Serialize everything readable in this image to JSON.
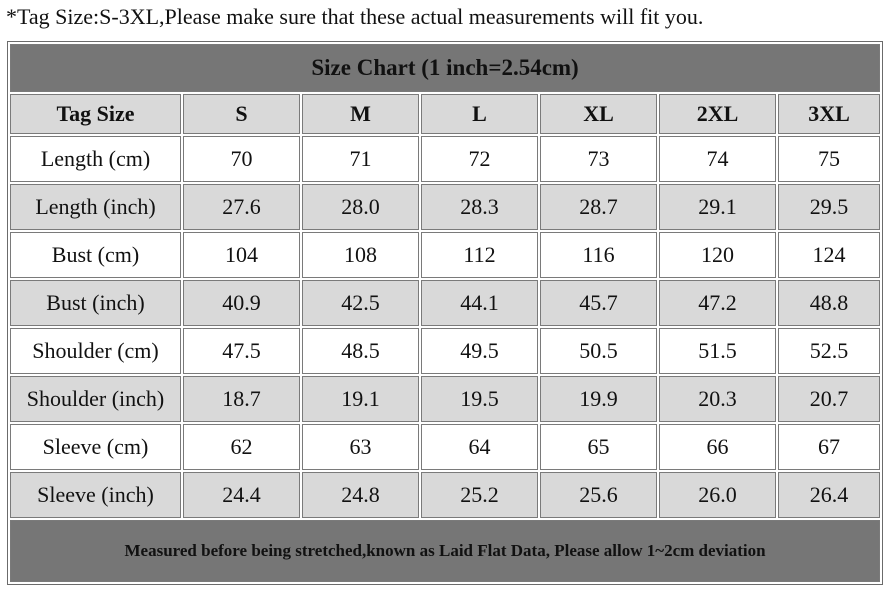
{
  "note": "*Tag Size:S-3XL,Please make sure that these actual measurements will fit you.",
  "table": {
    "title": "Size Chart (1 inch=2.54cm)",
    "header": [
      "Tag Size",
      "S",
      "M",
      "L",
      "XL",
      "2XL",
      "3XL"
    ],
    "rows": [
      [
        "Length (cm)",
        "70",
        "71",
        "72",
        "73",
        "74",
        "75"
      ],
      [
        "Length (inch)",
        "27.6",
        "28.0",
        "28.3",
        "28.7",
        "29.1",
        "29.5"
      ],
      [
        "Bust (cm)",
        "104",
        "108",
        "112",
        "116",
        "120",
        "124"
      ],
      [
        "Bust (inch)",
        "40.9",
        "42.5",
        "44.1",
        "45.7",
        "47.2",
        "48.8"
      ],
      [
        "Shoulder (cm)",
        "47.5",
        "48.5",
        "49.5",
        "50.5",
        "51.5",
        "52.5"
      ],
      [
        "Shoulder (inch)",
        "18.7",
        "19.1",
        "19.5",
        "19.9",
        "20.3",
        "20.7"
      ],
      [
        "Sleeve (cm)",
        "62",
        "63",
        "64",
        "65",
        "66",
        "67"
      ],
      [
        "Sleeve (inch)",
        "24.4",
        "24.8",
        "25.2",
        "25.6",
        "26.0",
        "26.4"
      ]
    ],
    "footer": "Measured before being stretched,known as Laid Flat Data, Please allow 1~2cm deviation"
  }
}
